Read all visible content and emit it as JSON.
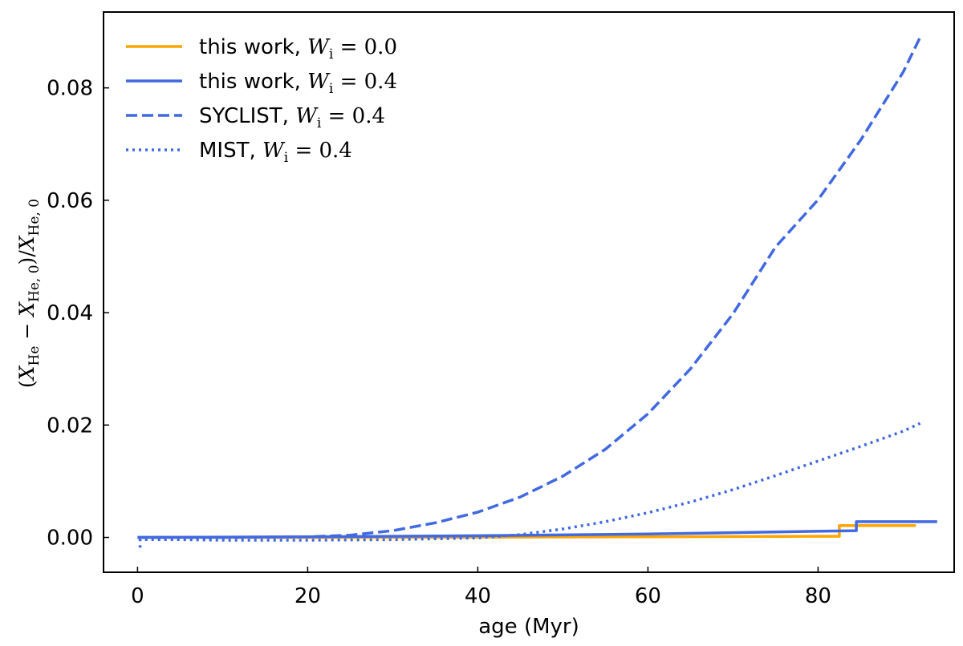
{
  "chart_data": {
    "type": "line",
    "xlabel": "age (Myr)",
    "ylabel": "(X_He − X_He,0)/X_He,0",
    "xlim": [
      -4,
      96
    ],
    "ylim": [
      -0.0062,
      0.0935
    ],
    "x_ticks": [
      0,
      20,
      40,
      60,
      80
    ],
    "x_tick_labels": [
      "0",
      "20",
      "40",
      "60",
      "80"
    ],
    "y_ticks": [
      0.0,
      0.02,
      0.04,
      0.06,
      0.08
    ],
    "y_tick_labels": [
      "0.00",
      "0.02",
      "0.04",
      "0.06",
      "0.08"
    ],
    "legend_position": "top-left",
    "colors": {
      "orange": "#FFA500",
      "blue": "#4169E1"
    },
    "series": [
      {
        "name": "this work, W_i = 0.0",
        "label_prefix": "this work, ",
        "label_value": "0.0",
        "color": "#FFA500",
        "style": "solid",
        "x": [
          0,
          20,
          40,
          60,
          80,
          82.5,
          82.5,
          84.5,
          84.5,
          91.5
        ],
        "y": [
          0.0,
          0.0,
          5e-05,
          0.00012,
          0.0002,
          0.0002,
          0.0021,
          0.0021,
          0.0021,
          0.0021
        ]
      },
      {
        "name": "this work, W_i = 0.4",
        "label_prefix": "this work, ",
        "label_value": "0.4",
        "color": "#4169E1",
        "style": "solid",
        "x": [
          0,
          20,
          40,
          60,
          84.5,
          84.5,
          94
        ],
        "y": [
          0.0,
          0.0001,
          0.0003,
          0.0006,
          0.0012,
          0.0028,
          0.0028
        ]
      },
      {
        "name": "SYCLIST, W_i = 0.4",
        "label_prefix": "SYCLIST, ",
        "label_value": "0.4",
        "color": "#4169E1",
        "style": "dashed",
        "x": [
          0,
          10,
          20,
          25,
          30,
          35,
          40,
          45,
          50,
          55,
          60,
          65,
          70,
          75,
          80,
          85,
          90,
          92
        ],
        "y": [
          0.0,
          0.0,
          0.0001,
          0.0004,
          0.0012,
          0.0026,
          0.0045,
          0.0072,
          0.0109,
          0.0157,
          0.022,
          0.03,
          0.0398,
          0.0517,
          0.0601,
          0.0707,
          0.0828,
          0.089
        ]
      },
      {
        "name": "MIST, W_i = 0.4",
        "label_prefix": "MIST, ",
        "label_value": "0.4",
        "color": "#4169E1",
        "style": "dotted",
        "x": [
          0.3,
          0.3,
          5,
          10,
          20,
          30,
          40,
          45,
          50,
          55,
          60,
          65,
          70,
          75,
          80,
          85,
          90,
          92
        ],
        "y": [
          -0.0018,
          -0.0004,
          -0.0004,
          -0.0005,
          -0.0005,
          -0.0004,
          -0.0001,
          0.0005,
          0.0015,
          0.0028,
          0.0044,
          0.0063,
          0.0085,
          0.011,
          0.0136,
          0.0162,
          0.0189,
          0.0203
        ]
      }
    ]
  }
}
